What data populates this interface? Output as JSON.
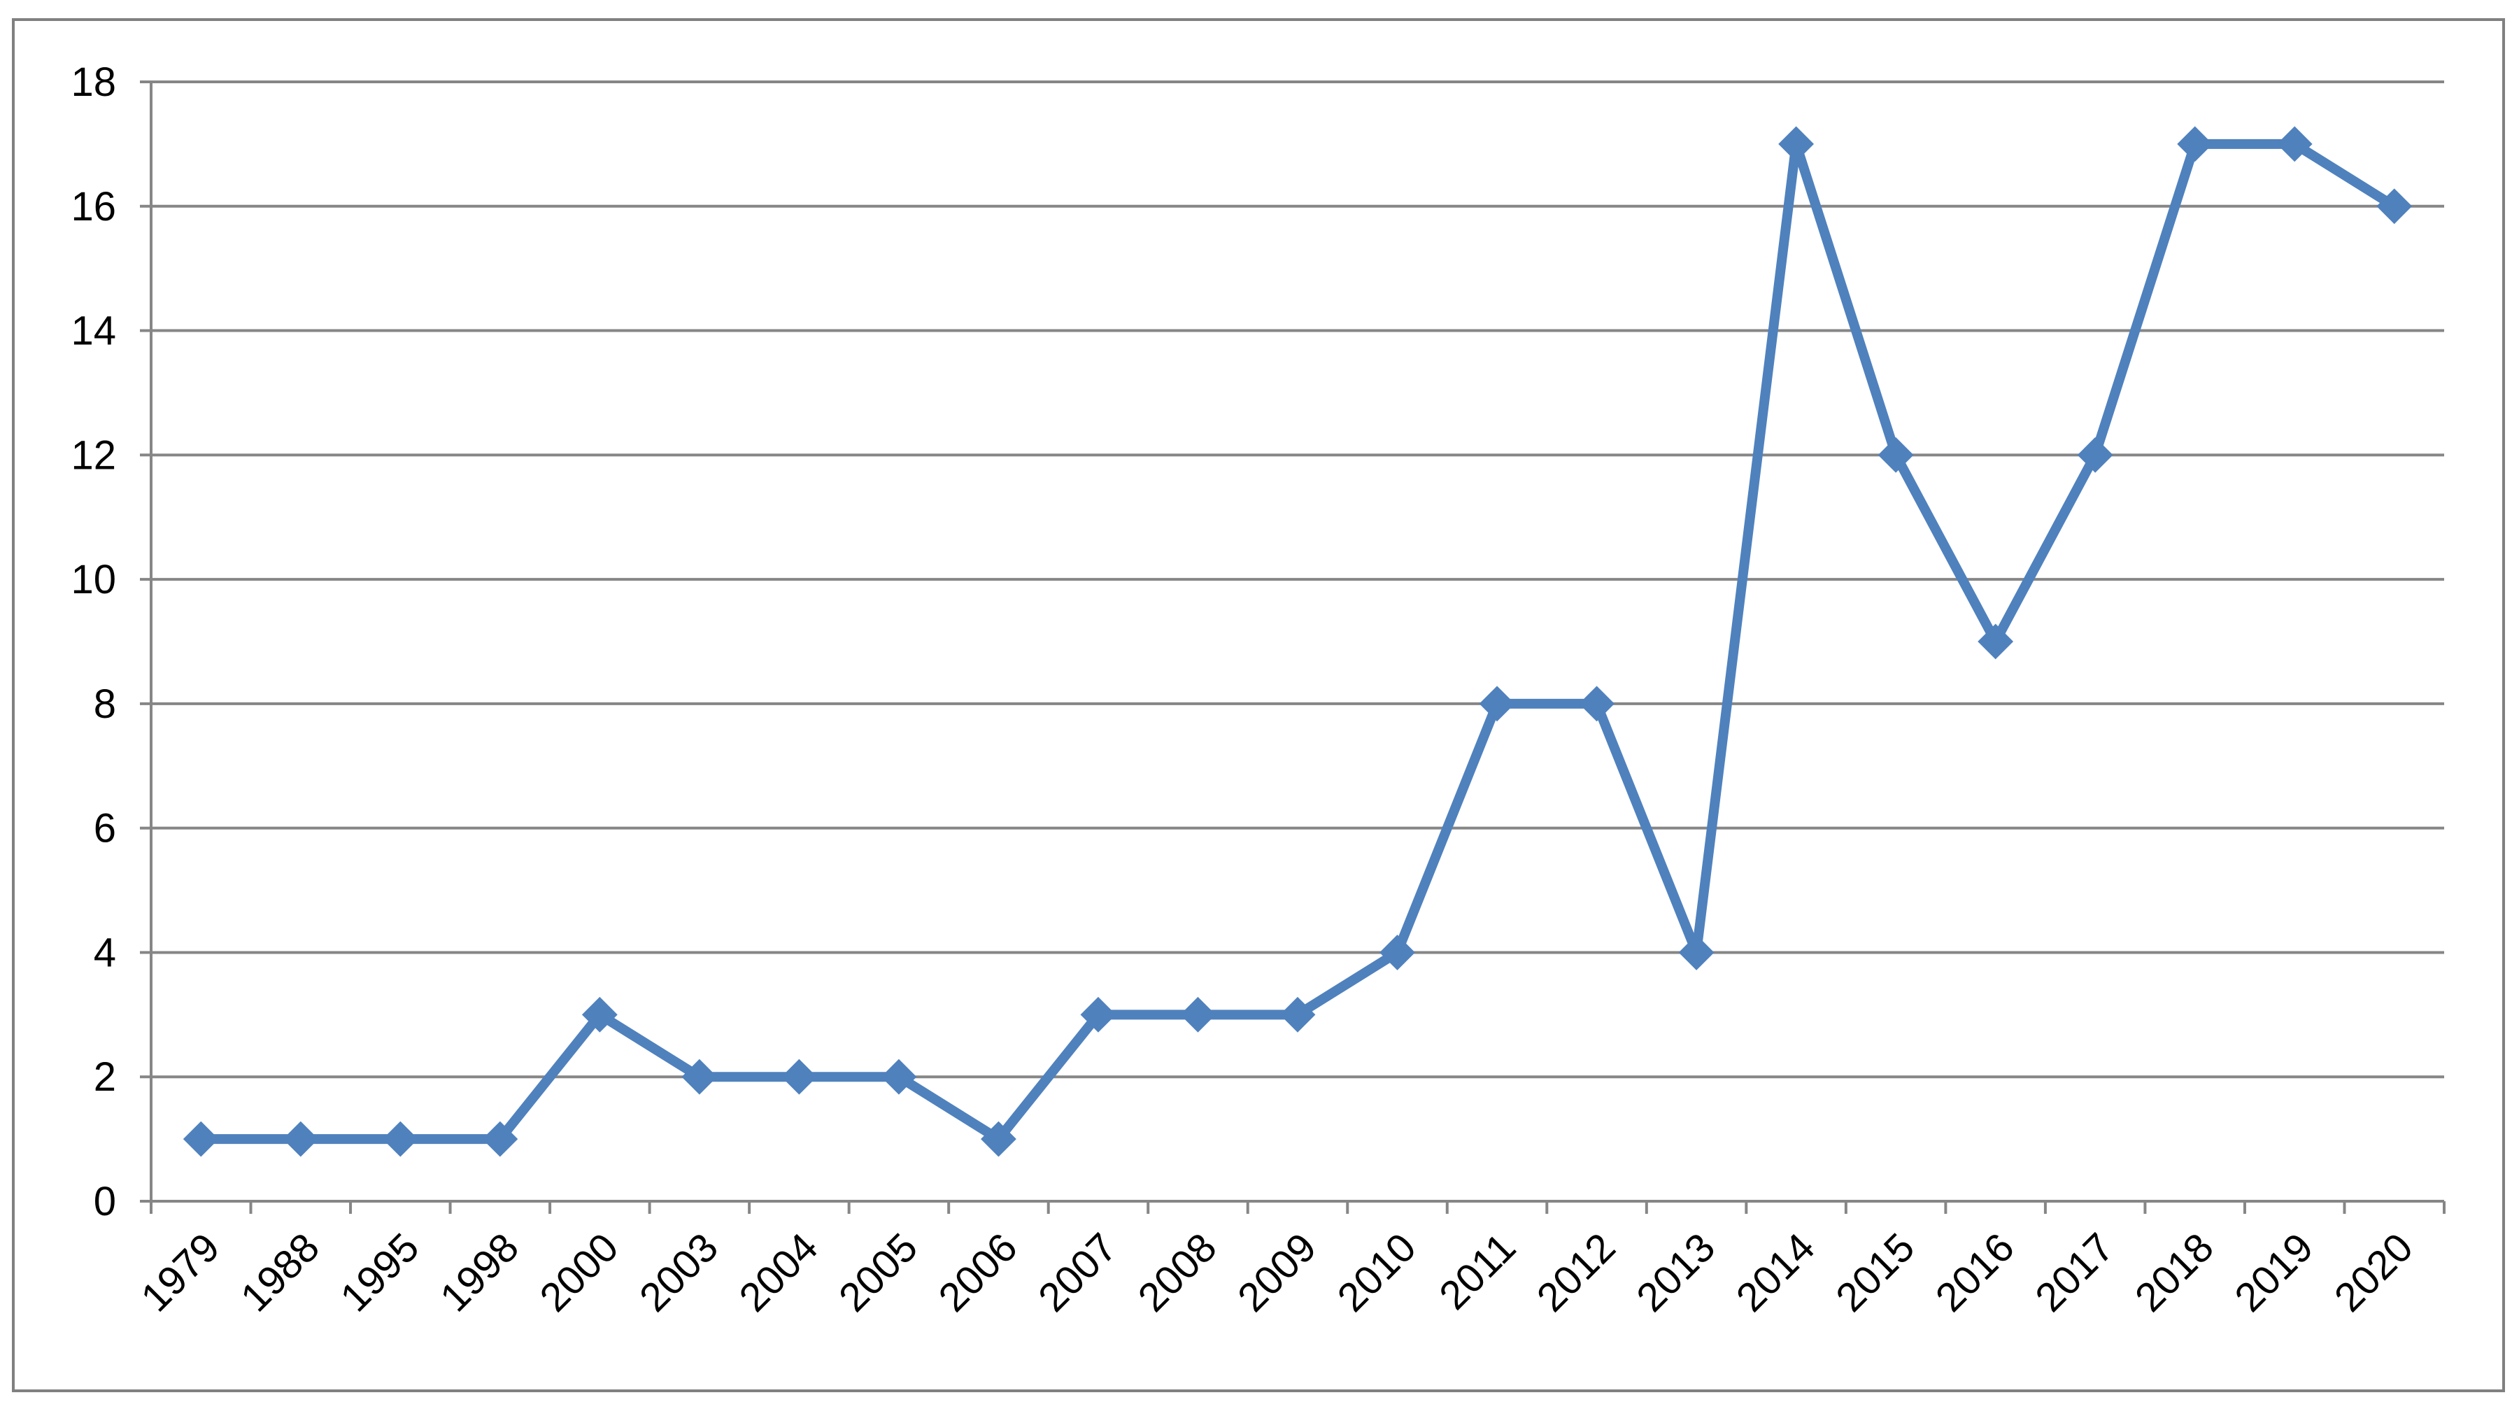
{
  "chart_data": {
    "type": "line",
    "title": "",
    "xlabel": "",
    "ylabel": "",
    "categories": [
      "1979",
      "1988",
      "1995",
      "1998",
      "2000",
      "2003",
      "2004",
      "2005",
      "2006",
      "2007",
      "2008",
      "2009",
      "2010",
      "2011",
      "2012",
      "2013",
      "2014",
      "2015",
      "2016",
      "2017",
      "2018",
      "2019",
      "2020"
    ],
    "series": [
      {
        "values": [
          1,
          1,
          1,
          1,
          3,
          2,
          2,
          2,
          1,
          3,
          3,
          3,
          4,
          8,
          8,
          4,
          17,
          12,
          9,
          12,
          17,
          17,
          16
        ]
      }
    ],
    "ylim": [
      0,
      18
    ],
    "yticks": [
      "0",
      "2",
      "4",
      "6",
      "8",
      "10",
      "12",
      "14",
      "16",
      "18"
    ],
    "grid": true,
    "legend": "none",
    "colors": {
      "series": "#4F81BD",
      "grid": "#868686",
      "axis": "#868686",
      "frame": "#808080"
    },
    "marker": "diamond"
  }
}
